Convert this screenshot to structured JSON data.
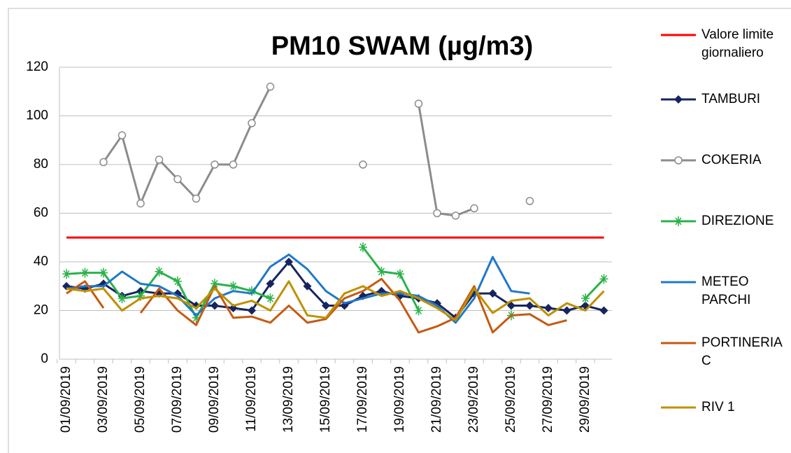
{
  "chart_data": {
    "type": "line",
    "title": "PM10 SWAM (µg/m3)",
    "categories": [
      "01/09/2019",
      null,
      "03/09/2019",
      null,
      "05/09/2019",
      null,
      "07/09/2019",
      null,
      "09/09/2019",
      null,
      "11/09/2019",
      null,
      "13/09/2019",
      null,
      "15/09/2019",
      null,
      "17/09/2019",
      null,
      "19/09/2019",
      null,
      "21/09/2019",
      null,
      "23/09/2019",
      null,
      "25/09/2019",
      null,
      "27/09/2019",
      null,
      "29/09/2019",
      null
    ],
    "ylim": [
      0,
      120
    ],
    "yticks": [
      0,
      20,
      40,
      60,
      80,
      100,
      120
    ],
    "grid": true,
    "legend": "right",
    "series": [
      {
        "name": "Valore limite giornaliero",
        "color": "#ff0000",
        "marker": "none",
        "values": [
          50,
          50,
          50,
          50,
          50,
          50,
          50,
          50,
          50,
          50,
          50,
          50,
          50,
          50,
          50,
          50,
          50,
          50,
          50,
          50,
          50,
          50,
          50,
          50,
          50,
          50,
          50,
          50,
          50,
          50
        ]
      },
      {
        "name": "TAMBURI",
        "color": "#17255e",
        "marker": "diamond",
        "values": [
          30,
          29,
          31,
          26,
          28,
          27,
          27,
          22,
          22,
          21,
          20,
          31,
          40,
          30,
          22,
          22,
          26,
          28,
          26,
          25,
          23,
          17,
          27,
          27,
          22,
          22,
          21,
          20,
          22,
          20
        ]
      },
      {
        "name": "COKERIA",
        "color": "#8c8c8c",
        "marker": "circle",
        "values": [
          null,
          null,
          81,
          92,
          64,
          82,
          74,
          66,
          80,
          80,
          97,
          112,
          null,
          null,
          null,
          null,
          80,
          null,
          null,
          105,
          60,
          59,
          62,
          null,
          null,
          65,
          null,
          null,
          null,
          null
        ]
      },
      {
        "name": "DIREZIONE",
        "color": "#2ab24a",
        "marker": "star",
        "values": [
          35,
          35.5,
          35.5,
          25,
          26,
          36,
          32,
          17,
          31,
          30,
          28,
          25,
          null,
          null,
          null,
          null,
          46,
          36,
          35,
          20,
          null,
          null,
          null,
          null,
          18,
          null,
          null,
          null,
          25,
          33
        ]
      },
      {
        "name": "METEO PARCHI",
        "color": "#1f78c8",
        "marker": "none",
        "values": [
          29,
          30,
          30,
          36,
          31,
          30,
          26,
          18,
          25,
          28,
          27,
          38,
          43,
          37,
          28,
          23,
          25,
          27,
          27,
          26,
          22,
          15,
          25,
          42,
          28,
          27,
          null,
          null,
          null,
          null
        ]
      },
      {
        "name": "PORTINERIA C",
        "color": "#c55a11",
        "marker": "none",
        "values": [
          27,
          32,
          21,
          null,
          19,
          29,
          20,
          14,
          30,
          17,
          17.5,
          15,
          22,
          15,
          16.5,
          25,
          28,
          33,
          24,
          11,
          13.5,
          17,
          30,
          11,
          18,
          18.5,
          14,
          16,
          null,
          null
        ]
      },
      {
        "name": "RIV 1",
        "color": "#bf9000",
        "marker": "none",
        "values": [
          29,
          28,
          29,
          20,
          25,
          26,
          25,
          21,
          29,
          22,
          24,
          20,
          32,
          18,
          17,
          27,
          30,
          26,
          28,
          25,
          21,
          16,
          29,
          19,
          24,
          25,
          18,
          23,
          20,
          28
        ]
      }
    ]
  }
}
